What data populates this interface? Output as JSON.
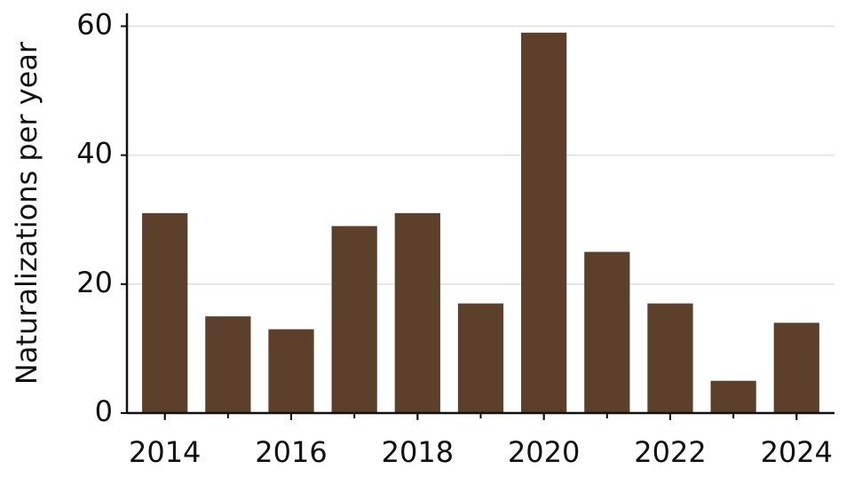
{
  "chart_data": {
    "type": "bar",
    "ylabel": "Naturalizations per year",
    "x": [
      2014,
      2015,
      2016,
      2017,
      2018,
      2019,
      2020,
      2021,
      2022,
      2023,
      2024
    ],
    "values": [
      31,
      15,
      13,
      29,
      31,
      17,
      59,
      25,
      17,
      5,
      14
    ],
    "color": "#5c402b",
    "xlim": [
      2013.4,
      2024.6
    ],
    "xticks": [
      2014,
      2016,
      2018,
      2020,
      2022,
      2024
    ],
    "ylim": [
      0,
      62
    ],
    "yticks": [
      0,
      20,
      40,
      60
    ],
    "grid": true
  }
}
